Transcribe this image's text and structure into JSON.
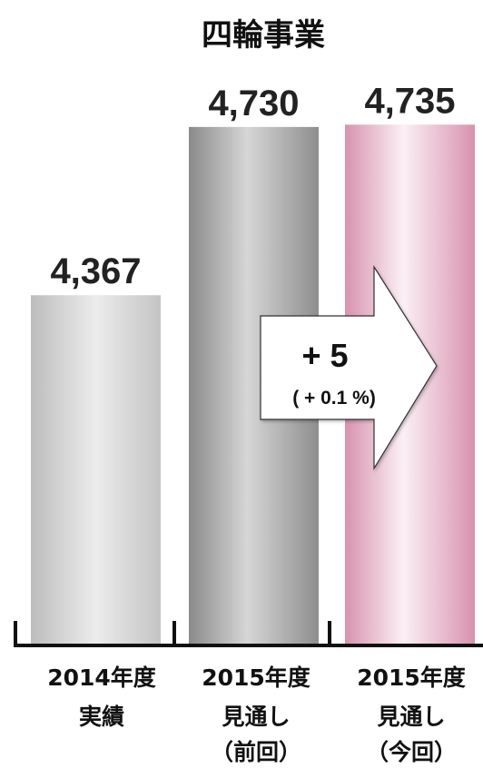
{
  "chart_data": {
    "type": "bar",
    "title": "四輪事業",
    "categories": [
      [
        "2014年度",
        "実績"
      ],
      [
        "2015年度",
        "見通し",
        "（前回）"
      ],
      [
        "2015年度",
        "見通し",
        "（今回）"
      ]
    ],
    "values": [
      4367,
      4730,
      4735
    ],
    "value_labels": [
      "4,367",
      "4,730",
      "4,735"
    ],
    "annotation": {
      "change": "+ 5",
      "change_pct": "( + 0.1 %)"
    },
    "colors": {
      "bar_2014": "#d4d4d4",
      "bar_2015_prev": "#a8a8a8",
      "bar_2015_curr": "#e8b8cc",
      "axis": "#111111"
    },
    "grid": false,
    "legend": "none"
  }
}
